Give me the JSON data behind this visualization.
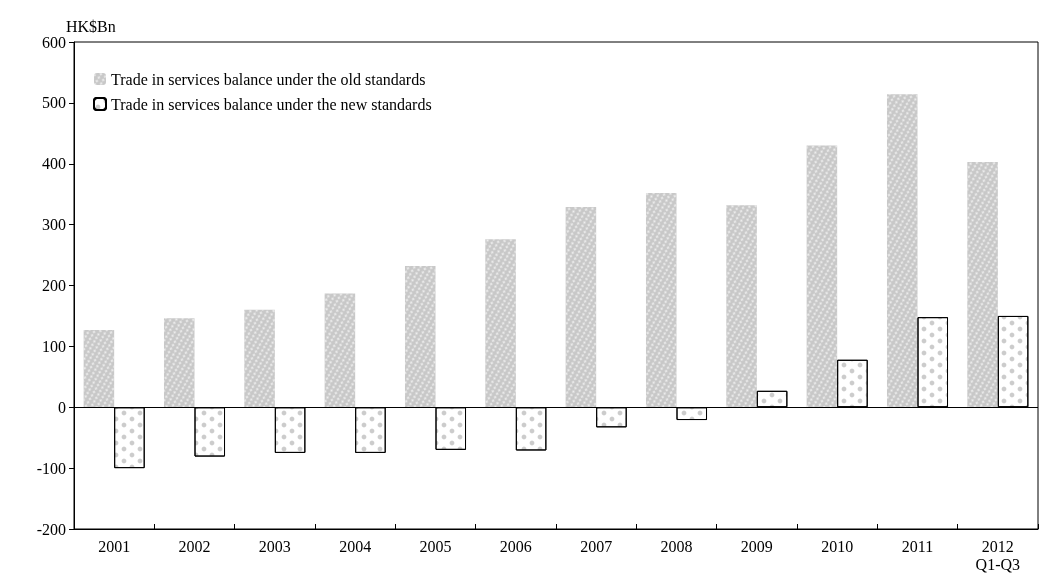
{
  "chart_data": {
    "type": "bar",
    "ylabel": "HK$Bn",
    "categories": [
      "2001",
      "2002",
      "2003",
      "2004",
      "2005",
      "2006",
      "2007",
      "2008",
      "2009",
      "2010",
      "2011",
      "2012\nQ1-Q3"
    ],
    "series": [
      {
        "name": "Trade in services balance under the old standards",
        "color": "#c8c8c8",
        "values": [
          127,
          146,
          160,
          187,
          232,
          276,
          329,
          352,
          332,
          430,
          514,
          403
        ]
      },
      {
        "name": "Trade in services balance under the new standards",
        "color": "#ffffff",
        "values": [
          -100,
          -81,
          -75,
          -75,
          -70,
          -71,
          -33,
          -21,
          27,
          78,
          148,
          150
        ]
      }
    ],
    "ylim": [
      -200,
      600
    ],
    "yticks": [
      -200,
      -100,
      0,
      100,
      200,
      300,
      400,
      500,
      600
    ],
    "ref_lines": [
      {
        "axis": "y",
        "value": 0
      }
    ],
    "grid": false,
    "legend": "top left"
  }
}
